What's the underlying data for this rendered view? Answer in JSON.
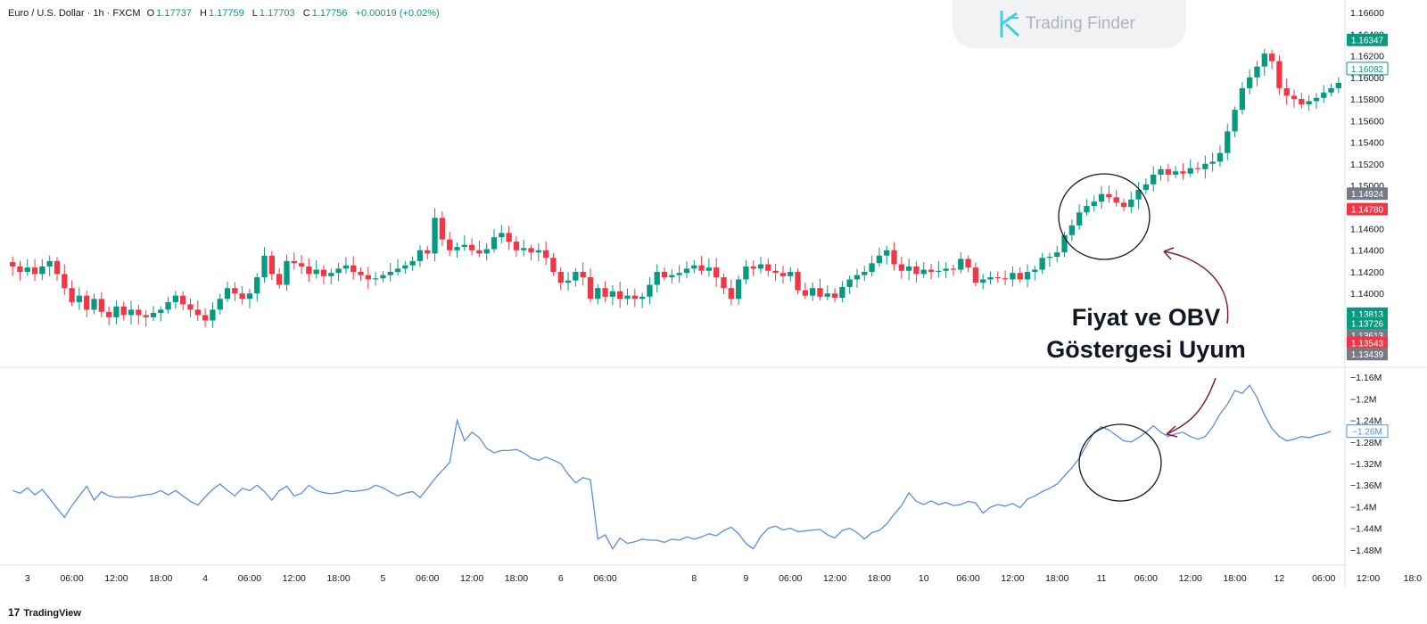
{
  "header": {
    "symbol": "Euro / U.S. Dollar · 1h · FXCM",
    "o_label": "O",
    "o_value": "1.17737",
    "h_label": "H",
    "h_value": "1.17759",
    "l_label": "L",
    "l_value": "1.17703",
    "c_label": "C",
    "c_value": "1.17756",
    "change": "+0.00019 (+0.02%)"
  },
  "watermark": {
    "text": "Trading Finder"
  },
  "annotation": {
    "line1": "Fiyat ve OBV",
    "line2": "Göstergesi Uyum"
  },
  "footer": {
    "brand": "TradingView"
  },
  "colors": {
    "up": "#089981",
    "down": "#f23645",
    "obv": "#5b8ee0",
    "gray": "#787b86",
    "arrow": "#7d1f3b"
  },
  "chart_data": [
    {
      "type": "candlestick",
      "title": "Euro / U.S. Dollar · 1h · FXCM",
      "ylim": [
        1.1335,
        1.1665
      ],
      "y_ticks": [
        "1.16600",
        "1.16400",
        "1.16200",
        "1.16000",
        "1.15800",
        "1.15600",
        "1.15400",
        "1.15200",
        "1.15000",
        "1.14800",
        "1.14600",
        "1.14400",
        "1.14200",
        "1.14000"
      ],
      "y_tick_values": [
        1.166,
        1.164,
        1.162,
        1.16,
        1.158,
        1.156,
        1.154,
        1.152,
        1.15,
        1.148,
        1.146,
        1.144,
        1.142,
        1.14
      ],
      "price_badges": [
        {
          "label": "1.16347",
          "value": 1.16347,
          "color": "#089981",
          "style": "fill"
        },
        {
          "label": "1.16082",
          "value": 1.16082,
          "color": "#089981",
          "style": "outline"
        },
        {
          "label": "1.14924",
          "value": 1.14924,
          "color": "#787b86",
          "style": "fill"
        },
        {
          "label": "1.14780",
          "value": 1.1478,
          "color": "#f23645",
          "style": "fill"
        },
        {
          "label": "1.13813",
          "value": 1.13813,
          "color": "#089981",
          "style": "fill"
        },
        {
          "label": "1.13726",
          "value": 1.13726,
          "color": "#089981",
          "style": "fill"
        },
        {
          "label": "1.13613",
          "value": 1.13613,
          "color": "#787b86",
          "style": "fill"
        },
        {
          "label": "1.13543",
          "value": 1.13543,
          "color": "#f23645",
          "style": "fill"
        },
        {
          "label": "1.13439",
          "value": 1.13439,
          "color": "#787b86",
          "style": "fill"
        }
      ],
      "x_ticks": [
        "3",
        "06:00",
        "12:00",
        "18:00",
        "4",
        "06:00",
        "12:00",
        "18:00",
        "5",
        "06:00",
        "12:00",
        "18:00",
        "6",
        "06:00",
        "8",
        "9",
        "06:00",
        "12:00",
        "18:00",
        "10",
        "06:00",
        "12:00",
        "18:00",
        "11",
        "06:00",
        "12:00",
        "18:00",
        "12",
        "06:00",
        "12:00",
        "18:0"
      ],
      "x_tick_index": [
        2,
        8,
        14,
        20,
        26,
        32,
        38,
        44,
        50,
        56,
        62,
        68,
        74,
        80,
        92,
        99,
        105,
        111,
        117,
        123,
        129,
        135,
        141,
        147,
        153,
        159,
        165,
        171,
        177,
        183,
        189
      ],
      "closes": [
        1.1425,
        1.142,
        1.1424,
        1.1418,
        1.1425,
        1.143,
        1.1418,
        1.1405,
        1.1392,
        1.1398,
        1.1385,
        1.1395,
        1.1383,
        1.1378,
        1.1388,
        1.138,
        1.1385,
        1.138,
        1.1378,
        1.1382,
        1.1385,
        1.1392,
        1.1398,
        1.139,
        1.1385,
        1.138,
        1.1375,
        1.1385,
        1.1395,
        1.1405,
        1.14,
        1.1395,
        1.14,
        1.1415,
        1.1435,
        1.1418,
        1.1408,
        1.143,
        1.1428,
        1.1425,
        1.1418,
        1.1422,
        1.1416,
        1.1419,
        1.1423,
        1.1426,
        1.142,
        1.1417,
        1.1413,
        1.1414,
        1.1417,
        1.142,
        1.1423,
        1.1426,
        1.143,
        1.144,
        1.1437,
        1.147,
        1.145,
        1.144,
        1.1443,
        1.1445,
        1.144,
        1.1437,
        1.1441,
        1.1452,
        1.1456,
        1.1448,
        1.144,
        1.1442,
        1.1438,
        1.144,
        1.1433,
        1.142,
        1.141,
        1.1412,
        1.142,
        1.1415,
        1.1395,
        1.1405,
        1.1397,
        1.1402,
        1.1395,
        1.1398,
        1.1395,
        1.1397,
        1.1408,
        1.142,
        1.1415,
        1.1417,
        1.1419,
        1.1423,
        1.1426,
        1.1421,
        1.1424,
        1.1415,
        1.1405,
        1.1395,
        1.1413,
        1.1425,
        1.1423,
        1.1427,
        1.1421,
        1.1419,
        1.1416,
        1.142,
        1.1403,
        1.1398,
        1.1405,
        1.1397,
        1.14,
        1.1396,
        1.1406,
        1.1413,
        1.1417,
        1.142,
        1.1428,
        1.1435,
        1.144,
        1.1427,
        1.1421,
        1.1425,
        1.1418,
        1.1422,
        1.142,
        1.1421,
        1.1423,
        1.1422,
        1.1432,
        1.1424,
        1.141,
        1.1413,
        1.1415,
        1.1414,
        1.1413,
        1.1419,
        1.1413,
        1.142,
        1.1422,
        1.1433,
        1.1434,
        1.1438,
        1.1454,
        1.1463,
        1.1475,
        1.1481,
        1.1485,
        1.1492,
        1.1489,
        1.1484,
        1.148,
        1.1487,
        1.1496,
        1.1501,
        1.151,
        1.1515,
        1.151,
        1.1513,
        1.1511,
        1.1516,
        1.1515,
        1.152,
        1.1522,
        1.153,
        1.155,
        1.157,
        1.159,
        1.16,
        1.161,
        1.1622,
        1.1615,
        1.159,
        1.1583,
        1.158,
        1.1575,
        1.1578,
        1.1581,
        1.1586,
        1.159,
        1.1595
      ]
    },
    {
      "type": "line",
      "title": "OBV",
      "series_name": "OBV",
      "ylim": [
        -1.505,
        -1.145
      ],
      "y_ticks": [
        "−1.16M",
        "−1.2M",
        "−1.24M",
        "−1.28M",
        "−1.32M",
        "−1.36M",
        "−1.4M",
        "−1.44M",
        "−1.48M"
      ],
      "y_tick_values": [
        -1.16,
        -1.2,
        -1.24,
        -1.28,
        -1.32,
        -1.36,
        -1.4,
        -1.44,
        -1.48
      ],
      "last_badge": {
        "label": "−1.26M",
        "value": -1.26
      },
      "values": [
        -1.37,
        -1.375,
        -1.365,
        -1.378,
        -1.368,
        -1.385,
        -1.403,
        -1.42,
        -1.398,
        -1.38,
        -1.362,
        -1.388,
        -1.372,
        -1.38,
        -1.383,
        -1.382,
        -1.383,
        -1.38,
        -1.378,
        -1.376,
        -1.37,
        -1.378,
        -1.37,
        -1.38,
        -1.39,
        -1.397,
        -1.382,
        -1.368,
        -1.358,
        -1.37,
        -1.38,
        -1.366,
        -1.37,
        -1.36,
        -1.372,
        -1.388,
        -1.37,
        -1.362,
        -1.38,
        -1.375,
        -1.36,
        -1.37,
        -1.374,
        -1.376,
        -1.374,
        -1.37,
        -1.372,
        -1.37,
        -1.368,
        -1.36,
        -1.365,
        -1.373,
        -1.38,
        -1.375,
        -1.372,
        -1.383,
        -1.366,
        -1.348,
        -1.333,
        -1.318,
        -1.24,
        -1.278,
        -1.262,
        -1.272,
        -1.292,
        -1.3,
        -1.296,
        -1.296,
        -1.294,
        -1.3,
        -1.31,
        -1.314,
        -1.308,
        -1.314,
        -1.32,
        -1.34,
        -1.356,
        -1.346,
        -1.35,
        -1.46,
        -1.452,
        -1.478,
        -1.458,
        -1.468,
        -1.465,
        -1.46,
        -1.462,
        -1.462,
        -1.466,
        -1.46,
        -1.462,
        -1.456,
        -1.46,
        -1.456,
        -1.45,
        -1.454,
        -1.444,
        -1.438,
        -1.45,
        -1.468,
        -1.478,
        -1.455,
        -1.44,
        -1.436,
        -1.443,
        -1.44,
        -1.446,
        -1.445,
        -1.443,
        -1.442,
        -1.452,
        -1.458,
        -1.444,
        -1.44,
        -1.448,
        -1.46,
        -1.448,
        -1.444,
        -1.432,
        -1.414,
        -1.398,
        -1.374,
        -1.39,
        -1.396,
        -1.389,
        -1.396,
        -1.392,
        -1.398,
        -1.396,
        -1.39,
        -1.393,
        -1.412,
        -1.401,
        -1.396,
        -1.399,
        -1.394,
        -1.402,
        -1.386,
        -1.38,
        -1.372,
        -1.366,
        -1.358,
        -1.343,
        -1.328,
        -1.31,
        -1.285,
        -1.262,
        -1.252,
        -1.258,
        -1.268,
        -1.278,
        -1.28,
        -1.272,
        -1.262,
        -1.25,
        -1.262,
        -1.27,
        -1.265,
        -1.262,
        -1.27,
        -1.275,
        -1.27,
        -1.252,
        -1.228,
        -1.21,
        -1.185,
        -1.19,
        -1.175,
        -1.198,
        -1.23,
        -1.255,
        -1.27,
        -1.278,
        -1.275,
        -1.27,
        -1.272,
        -1.268,
        -1.265,
        -1.26
      ]
    }
  ]
}
